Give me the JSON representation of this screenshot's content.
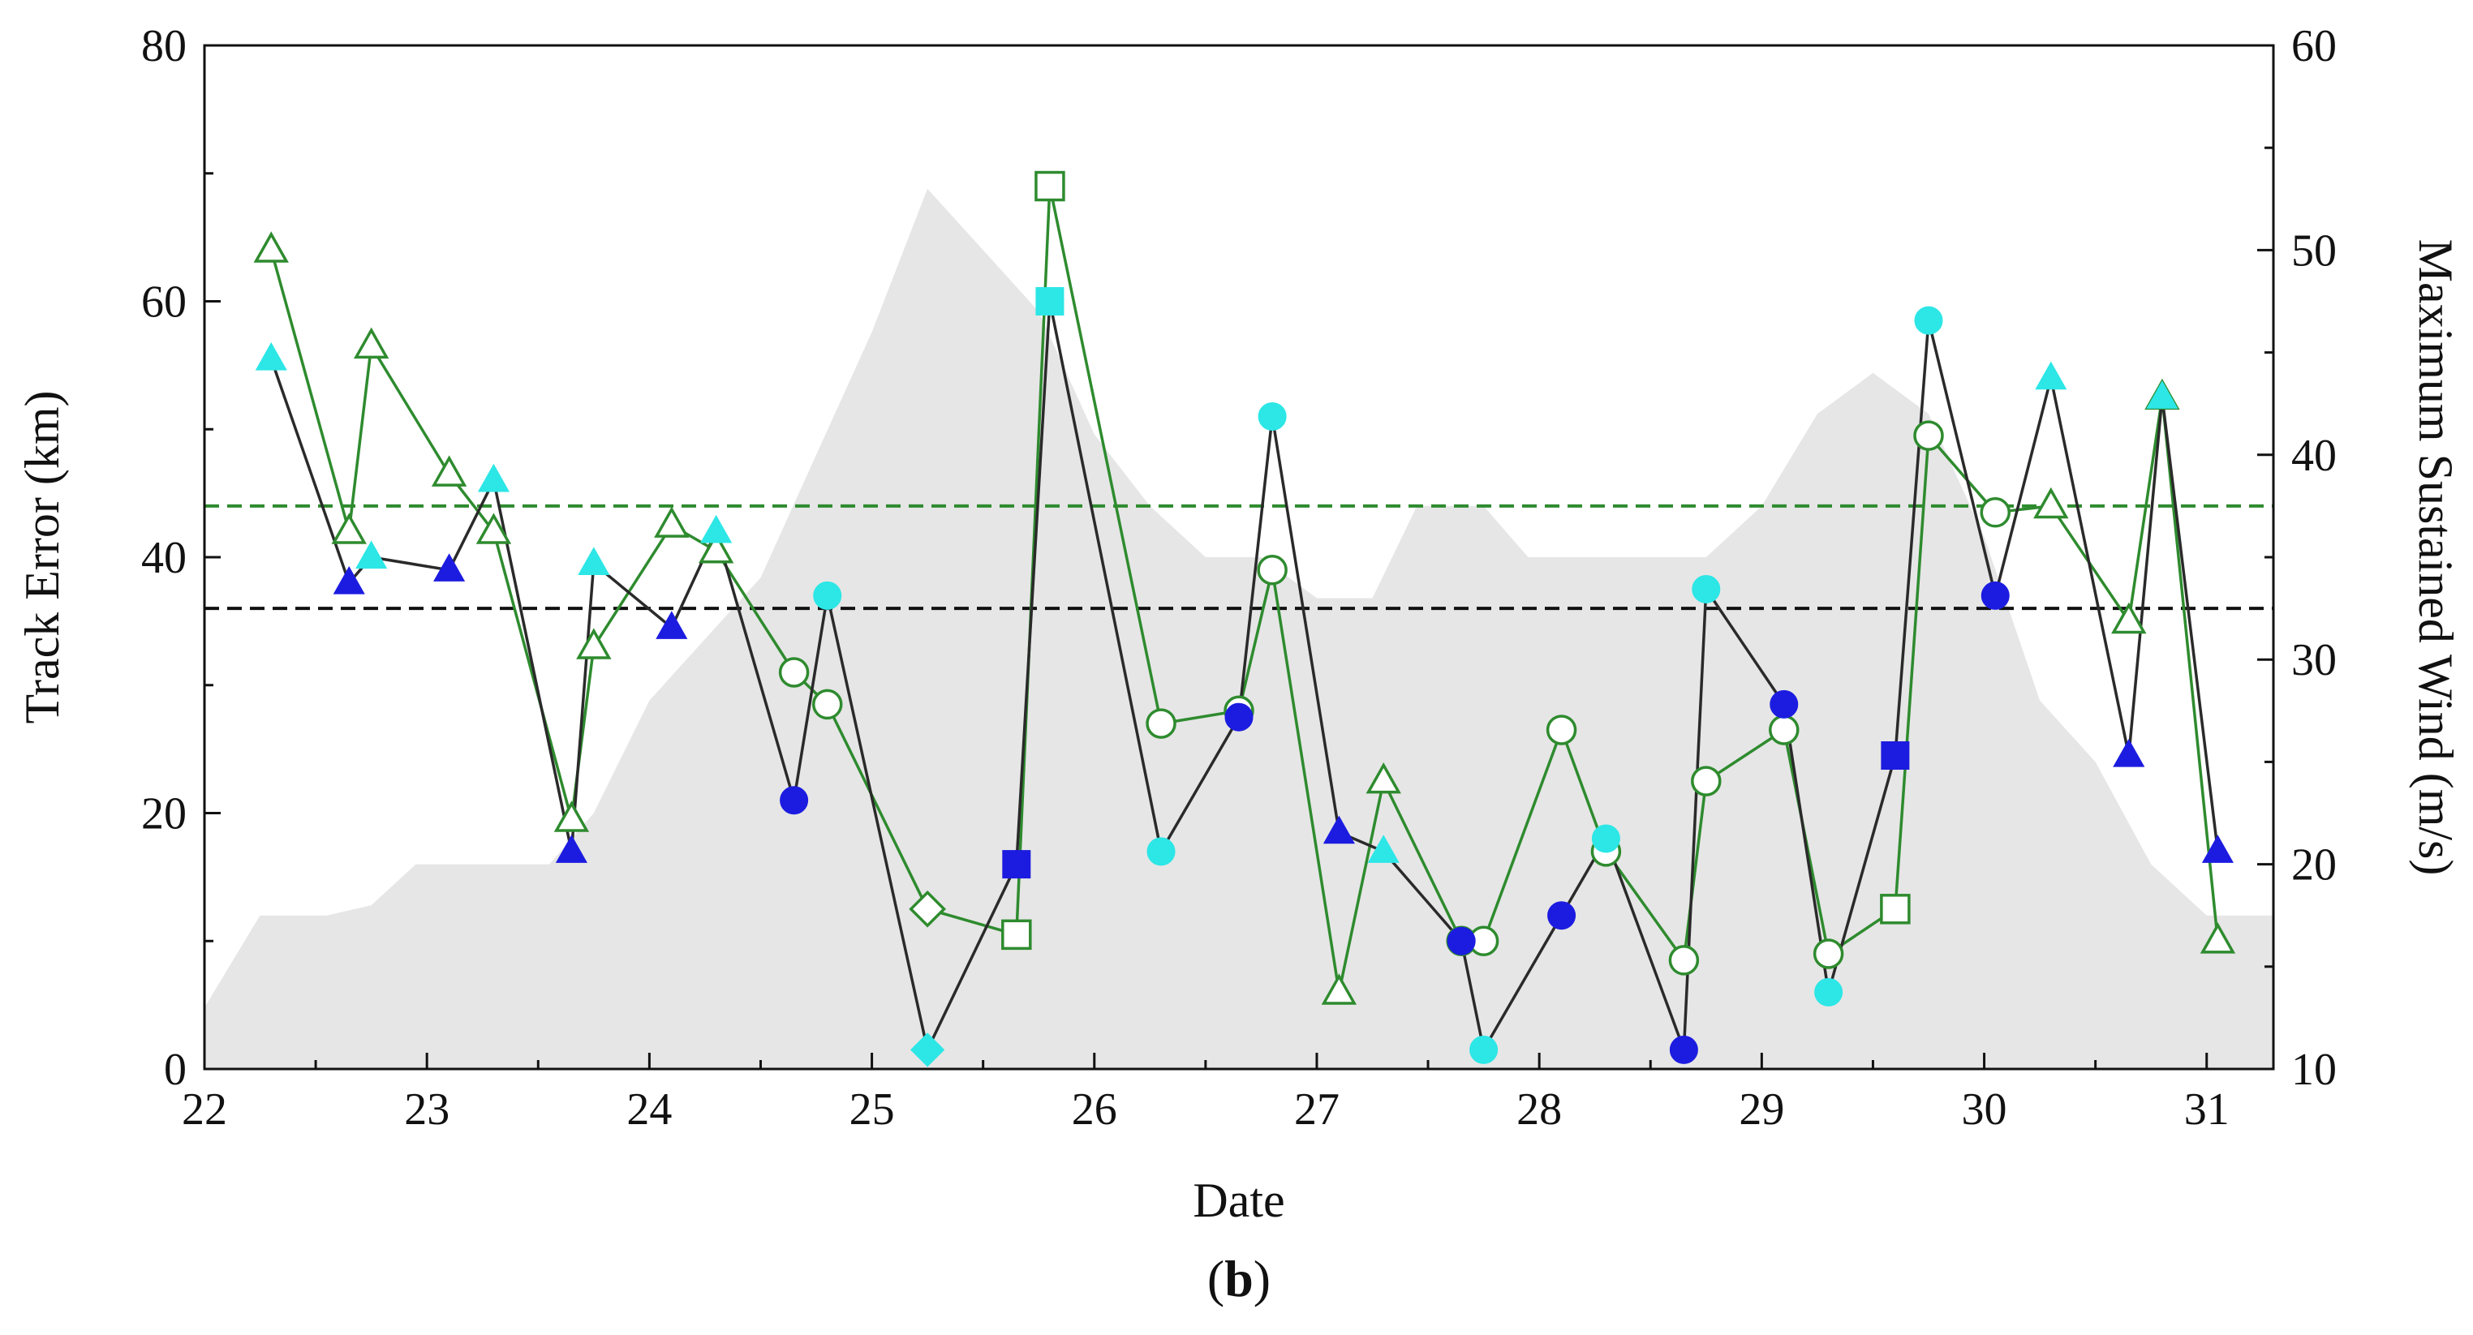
{
  "chart_data": {
    "type": "line",
    "xlabel": "Date",
    "ylabel": "Track Error (km)",
    "y2label": "Maximum Sustained Wind (m/s)",
    "panel_label_open": "(",
    "panel_label_letter": "b",
    "panel_label_close": ")",
    "xlim": [
      22,
      31.3
    ],
    "ylim": [
      0,
      80
    ],
    "y2lim": [
      10,
      60
    ],
    "x_ticks": [
      22,
      23,
      24,
      25,
      26,
      27,
      28,
      29,
      30,
      31
    ],
    "x_tick_labels": [
      "22",
      "23",
      "24",
      "25",
      "26",
      "27",
      "28",
      "29",
      "30",
      "31"
    ],
    "y_ticks": [
      0,
      20,
      40,
      60,
      80
    ],
    "y_tick_labels": [
      "0",
      "20",
      "40",
      "60",
      "80"
    ],
    "y2_ticks": [
      10,
      20,
      30,
      40,
      50,
      60
    ],
    "y2_tick_labels": [
      "10",
      "20",
      "30",
      "40",
      "50",
      "60"
    ],
    "grid": false,
    "colors": {
      "black_series": "#2a2a2a",
      "green_series": "#2e8b2e",
      "blue_marker": "#1c1ce0",
      "cyan_marker": "#2de6e6",
      "wind_area": "#e6e6e6"
    },
    "reference_lines": [
      {
        "y": 44,
        "color": "#2e8b2e",
        "style": "dashed"
      },
      {
        "y": 36,
        "color": "#111111",
        "style": "dashed"
      }
    ],
    "wind_area": {
      "x": [
        22.0,
        22.25,
        22.55,
        22.75,
        22.95,
        23.25,
        23.55,
        23.75,
        24.0,
        24.25,
        24.5,
        24.75,
        25.0,
        25.25,
        25.5,
        25.75,
        26.0,
        26.25,
        26.5,
        26.75,
        27.0,
        27.25,
        27.45,
        27.75,
        27.95,
        28.25,
        28.5,
        28.75,
        29.0,
        29.25,
        29.5,
        29.75,
        30.0,
        30.25,
        30.5,
        30.75,
        31.0,
        31.3
      ],
      "y": [
        13,
        17.5,
        17.5,
        18,
        20,
        20,
        20,
        22.5,
        28,
        31,
        34,
        40,
        46,
        53,
        50,
        47,
        41,
        37.5,
        35,
        35,
        33,
        33,
        37.5,
        37.5,
        35,
        35,
        35,
        35,
        37.5,
        42,
        44,
        42,
        36,
        28,
        25,
        20,
        17.5,
        17.5
      ]
    },
    "series": [
      {
        "name": "",
        "color": "#2a2a2a",
        "points": [
          {
            "x": 22.3,
            "y": 55.5,
            "marker": "triangle",
            "fill": "#2de6e6"
          },
          {
            "x": 22.65,
            "y": 38,
            "marker": "triangle",
            "fill": "#1c1ce0"
          },
          {
            "x": 22.75,
            "y": 40,
            "marker": "triangle",
            "fill": "#2de6e6"
          },
          {
            "x": 23.1,
            "y": 39,
            "marker": "triangle",
            "fill": "#1c1ce0"
          },
          {
            "x": 23.3,
            "y": 46,
            "marker": "triangle",
            "fill": "#2de6e6"
          },
          {
            "x": 23.65,
            "y": 17,
            "marker": "triangle",
            "fill": "#1c1ce0"
          },
          {
            "x": 23.75,
            "y": 39.5,
            "marker": "triangle",
            "fill": "#2de6e6"
          },
          {
            "x": 24.1,
            "y": 34.5,
            "marker": "triangle",
            "fill": "#1c1ce0"
          },
          {
            "x": 24.3,
            "y": 42,
            "marker": "triangle",
            "fill": "#2de6e6"
          },
          {
            "x": 24.65,
            "y": 21,
            "marker": "circle",
            "fill": "#1c1ce0"
          },
          {
            "x": 24.8,
            "y": 37,
            "marker": "circle",
            "fill": "#2de6e6"
          },
          {
            "x": 25.25,
            "y": 1.5,
            "marker": "diamond",
            "fill": "#2de6e6"
          },
          {
            "x": 25.65,
            "y": 16,
            "marker": "square",
            "fill": "#1c1ce0"
          },
          {
            "x": 25.8,
            "y": 60,
            "marker": "square",
            "fill": "#2de6e6"
          },
          {
            "x": 26.3,
            "y": 17,
            "marker": "circle",
            "fill": "#2de6e6"
          },
          {
            "x": 26.65,
            "y": 27.5,
            "marker": "circle",
            "fill": "#1c1ce0"
          },
          {
            "x": 26.8,
            "y": 51,
            "marker": "circle",
            "fill": "#2de6e6"
          },
          {
            "x": 27.1,
            "y": 18.5,
            "marker": "triangle",
            "fill": "#1c1ce0"
          },
          {
            "x": 27.3,
            "y": 17,
            "marker": "triangle",
            "fill": "#2de6e6"
          },
          {
            "x": 27.65,
            "y": 10,
            "marker": "circle",
            "fill": "#1c1ce0"
          },
          {
            "x": 27.75,
            "y": 1.5,
            "marker": "circle",
            "fill": "#2de6e6"
          },
          {
            "x": 28.1,
            "y": 12,
            "marker": "circle",
            "fill": "#1c1ce0"
          },
          {
            "x": 28.3,
            "y": 18,
            "marker": "circle",
            "fill": "#2de6e6"
          },
          {
            "x": 28.65,
            "y": 1.5,
            "marker": "circle",
            "fill": "#1c1ce0"
          },
          {
            "x": 28.75,
            "y": 37.5,
            "marker": "circle",
            "fill": "#2de6e6"
          },
          {
            "x": 29.1,
            "y": 28.5,
            "marker": "circle",
            "fill": "#1c1ce0"
          },
          {
            "x": 29.3,
            "y": 6,
            "marker": "circle",
            "fill": "#2de6e6"
          },
          {
            "x": 29.6,
            "y": 24.5,
            "marker": "square",
            "fill": "#1c1ce0"
          },
          {
            "x": 29.75,
            "y": 58.5,
            "marker": "circle",
            "fill": "#2de6e6"
          },
          {
            "x": 30.05,
            "y": 37,
            "marker": "circle",
            "fill": "#1c1ce0"
          },
          {
            "x": 30.3,
            "y": 54,
            "marker": "triangle",
            "fill": "#2de6e6"
          },
          {
            "x": 30.65,
            "y": 24.5,
            "marker": "triangle",
            "fill": "#1c1ce0"
          },
          {
            "x": 30.8,
            "y": 52.5,
            "marker": "triangle",
            "fill": "#2de6e6"
          },
          {
            "x": 31.05,
            "y": 17,
            "marker": "triangle",
            "fill": "#1c1ce0"
          }
        ]
      },
      {
        "name": "",
        "color": "#2e8b2e",
        "points": [
          {
            "x": 22.3,
            "y": 64,
            "marker": "triangle",
            "fill": "none"
          },
          {
            "x": 22.65,
            "y": 42,
            "marker": "triangle",
            "fill": "none"
          },
          {
            "x": 22.75,
            "y": 56.5,
            "marker": "triangle",
            "fill": "none"
          },
          {
            "x": 23.1,
            "y": 46.5,
            "marker": "triangle",
            "fill": "none"
          },
          {
            "x": 23.3,
            "y": 42,
            "marker": "triangle",
            "fill": "none"
          },
          {
            "x": 23.65,
            "y": 19.5,
            "marker": "triangle",
            "fill": "none"
          },
          {
            "x": 23.75,
            "y": 33,
            "marker": "triangle",
            "fill": "none"
          },
          {
            "x": 24.1,
            "y": 42.5,
            "marker": "triangle",
            "fill": "none"
          },
          {
            "x": 24.3,
            "y": 40.5,
            "marker": "triangle",
            "fill": "none"
          },
          {
            "x": 24.65,
            "y": 31,
            "marker": "circle",
            "fill": "none"
          },
          {
            "x": 24.8,
            "y": 28.5,
            "marker": "circle",
            "fill": "none"
          },
          {
            "x": 25.25,
            "y": 12.5,
            "marker": "diamond",
            "fill": "none"
          },
          {
            "x": 25.65,
            "y": 10.5,
            "marker": "square",
            "fill": "none"
          },
          {
            "x": 25.8,
            "y": 69,
            "marker": "square",
            "fill": "none"
          },
          {
            "x": 26.3,
            "y": 27,
            "marker": "circle",
            "fill": "none"
          },
          {
            "x": 26.65,
            "y": 28,
            "marker": "circle",
            "fill": "none"
          },
          {
            "x": 26.8,
            "y": 39,
            "marker": "circle",
            "fill": "none"
          },
          {
            "x": 27.1,
            "y": 6,
            "marker": "triangle",
            "fill": "none"
          },
          {
            "x": 27.3,
            "y": 22.5,
            "marker": "triangle",
            "fill": "none"
          },
          {
            "x": 27.65,
            "y": 10,
            "marker": "circle",
            "fill": "none"
          },
          {
            "x": 27.75,
            "y": 10,
            "marker": "circle",
            "fill": "none"
          },
          {
            "x": 28.1,
            "y": 26.5,
            "marker": "circle",
            "fill": "none"
          },
          {
            "x": 28.3,
            "y": 17,
            "marker": "circle",
            "fill": "none"
          },
          {
            "x": 28.65,
            "y": 8.5,
            "marker": "circle",
            "fill": "none"
          },
          {
            "x": 28.75,
            "y": 22.5,
            "marker": "circle",
            "fill": "none"
          },
          {
            "x": 29.1,
            "y": 26.5,
            "marker": "circle",
            "fill": "none"
          },
          {
            "x": 29.3,
            "y": 9,
            "marker": "circle",
            "fill": "none"
          },
          {
            "x": 29.6,
            "y": 12.5,
            "marker": "square",
            "fill": "none"
          },
          {
            "x": 29.75,
            "y": 49.5,
            "marker": "circle",
            "fill": "none"
          },
          {
            "x": 30.05,
            "y": 43.5,
            "marker": "circle",
            "fill": "none"
          },
          {
            "x": 30.3,
            "y": 44,
            "marker": "triangle",
            "fill": "none"
          },
          {
            "x": 30.65,
            "y": 35,
            "marker": "triangle",
            "fill": "none"
          },
          {
            "x": 30.8,
            "y": 52.5,
            "marker": "triangle",
            "fill": "none"
          },
          {
            "x": 31.05,
            "y": 10,
            "marker": "triangle",
            "fill": "none"
          }
        ]
      }
    ]
  }
}
